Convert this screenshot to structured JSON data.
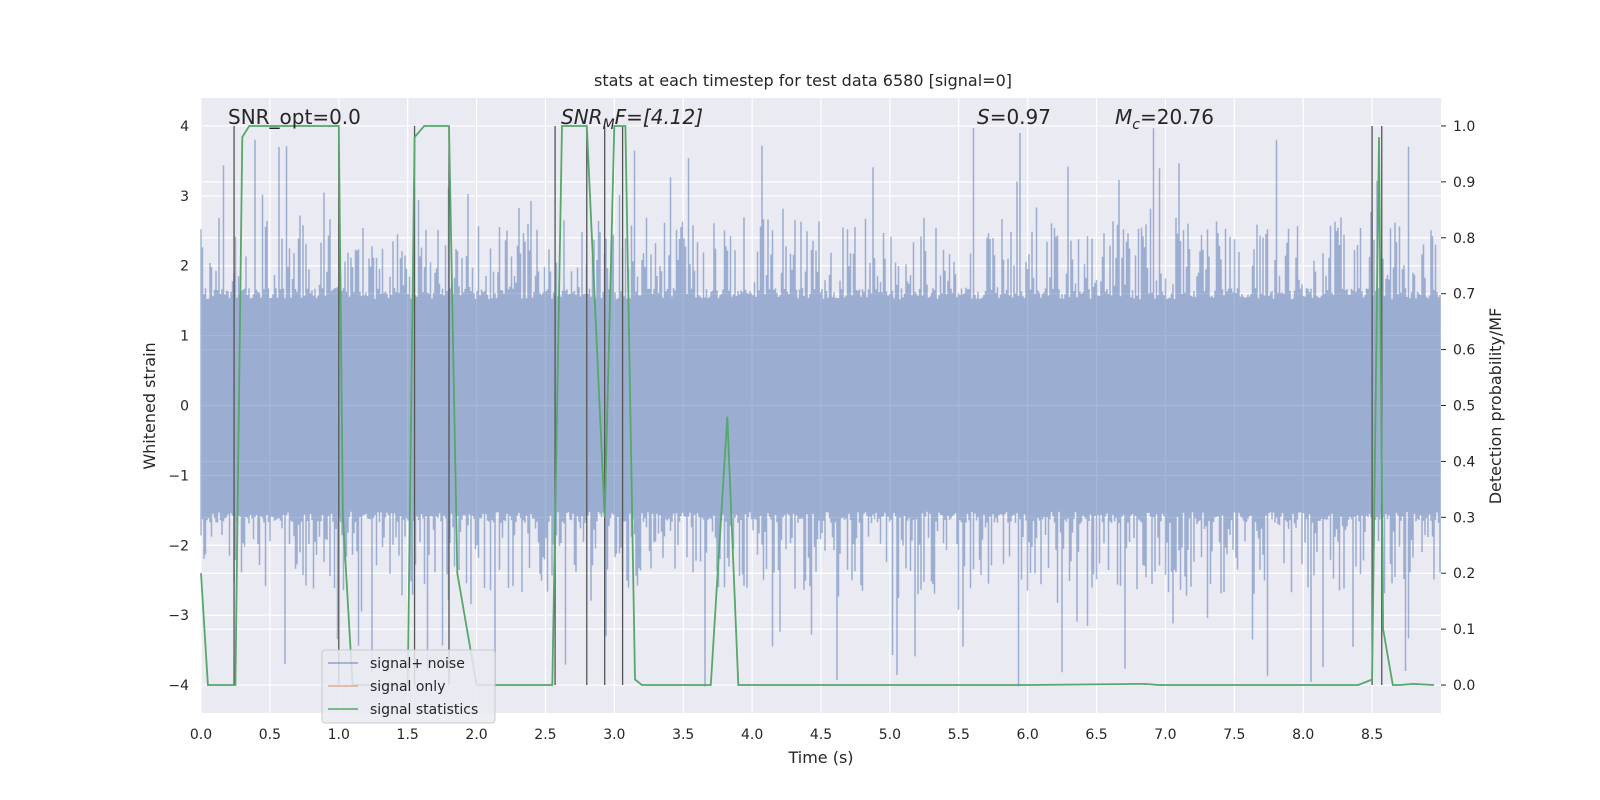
{
  "chart_data": {
    "type": "line",
    "title": "stats at each timestep for test data 6580 [signal=0]",
    "xlabel": "Time (s)",
    "ylabel": "Whitened strain",
    "ylabel_right": "Detection probability/MF",
    "xlim": [
      0,
      9.0
    ],
    "ylim": [
      -4.4,
      4.4
    ],
    "ylim_right": [
      -0.05,
      1.05
    ],
    "x_ticks": [
      "0.0",
      "0.5",
      "1.0",
      "1.5",
      "2.0",
      "2.5",
      "3.0",
      "3.5",
      "4.0",
      "4.5",
      "5.0",
      "5.5",
      "6.0",
      "6.5",
      "7.0",
      "7.5",
      "8.0",
      "8.5"
    ],
    "x_tick_values": [
      0,
      0.5,
      1,
      1.5,
      2,
      2.5,
      3,
      3.5,
      4,
      4.5,
      5,
      5.5,
      6,
      6.5,
      7,
      7.5,
      8,
      8.5
    ],
    "y_ticks": [
      "−4",
      "−3",
      "−2",
      "−1",
      "0",
      "1",
      "2",
      "3",
      "4"
    ],
    "y_tick_values": [
      -4,
      -3,
      -2,
      -1,
      0,
      1,
      2,
      3,
      4
    ],
    "y_ticks_right": [
      "0.0",
      "0.1",
      "0.2",
      "0.3",
      "0.4",
      "0.5",
      "0.6",
      "0.7",
      "0.8",
      "0.9",
      "1.0"
    ],
    "y_tick_values_right": [
      0,
      0.1,
      0.2,
      0.3,
      0.4,
      0.5,
      0.6,
      0.7,
      0.8,
      0.9,
      1.0
    ],
    "grid": true,
    "legend": {
      "placement": "lower-left",
      "entries": [
        {
          "label": "signal+ noise",
          "color": "#4c72b0"
        },
        {
          "label": "signal only",
          "color": "#dd8452"
        },
        {
          "label": "signal statistics",
          "color": "#55a868"
        }
      ]
    },
    "annotations": {
      "snr_opt": "SNR_opt=0.0",
      "snr_mf_sym": "SNR",
      "snr_mf_sub": "M",
      "snr_mf_rest": "F=[4.12]",
      "s_sym": "S",
      "s_rest": "=0.97",
      "mc_sym": "M",
      "mc_sub": "c",
      "mc_rest": "=20.76"
    },
    "noise_envelope": {
      "typical_amplitude": 1.6,
      "max_amplitude": 4.0
    },
    "series": [
      {
        "name": "signal statistics",
        "axis": "right",
        "x": [
          0,
          0.05,
          0.25,
          0.3,
          0.35,
          0.55,
          1.0,
          1.03,
          1.1,
          1.5,
          1.55,
          1.62,
          1.8,
          1.86,
          2.0,
          2.3,
          2.55,
          2.62,
          2.8,
          2.93,
          3.0,
          3.08,
          3.15,
          3.2,
          3.7,
          3.82,
          3.9,
          4.5,
          5.0,
          6.0,
          6.85,
          6.95,
          7.5,
          8.4,
          8.5,
          8.55,
          8.58,
          8.65,
          8.7,
          8.8,
          8.95
        ],
        "values": [
          0.2,
          0.0,
          0.0,
          0.98,
          1.0,
          1.0,
          1.0,
          0.3,
          0.0,
          0.0,
          0.98,
          1.0,
          1.0,
          0.2,
          0.0,
          0.0,
          0.0,
          1.0,
          1.0,
          0.3,
          1.0,
          1.0,
          0.01,
          0.0,
          0.0,
          0.48,
          0.0,
          0.0,
          0.0,
          0.0,
          0.002,
          0.0,
          0.0,
          0.0,
          0.01,
          0.98,
          0.1,
          0.0,
          0.0,
          0.002,
          0.0
        ]
      }
    ],
    "trigger_lines_x": [
      0.24,
      1.0,
      1.55,
      1.8,
      2.57,
      2.8,
      2.93,
      3.06,
      8.5,
      8.57
    ]
  }
}
